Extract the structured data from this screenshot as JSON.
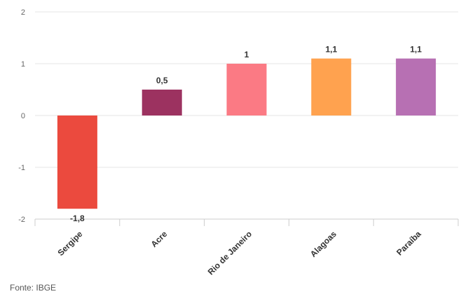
{
  "chart_data": {
    "type": "bar",
    "categories": [
      "Sergipe",
      "Acre",
      "Rio de Janeiro",
      "Alagoas",
      "Paraíba"
    ],
    "values": [
      -1.8,
      0.5,
      1,
      1.1,
      1.1
    ],
    "value_labels": [
      "-1,8",
      "0,5",
      "1",
      "1,1",
      "1,1"
    ],
    "colors": [
      "#eb4a3e",
      "#9c3260",
      "#fb7a84",
      "#ffa24f",
      "#b770b3"
    ],
    "ylim": [
      -2,
      2
    ],
    "yticks": [
      -2,
      -1,
      0,
      1,
      2
    ],
    "ytick_labels": [
      "-2",
      "-1",
      "0",
      "1",
      "2"
    ],
    "grid": true,
    "title": "",
    "xlabel": "",
    "ylabel": ""
  },
  "source": "Fonte: IBGE"
}
